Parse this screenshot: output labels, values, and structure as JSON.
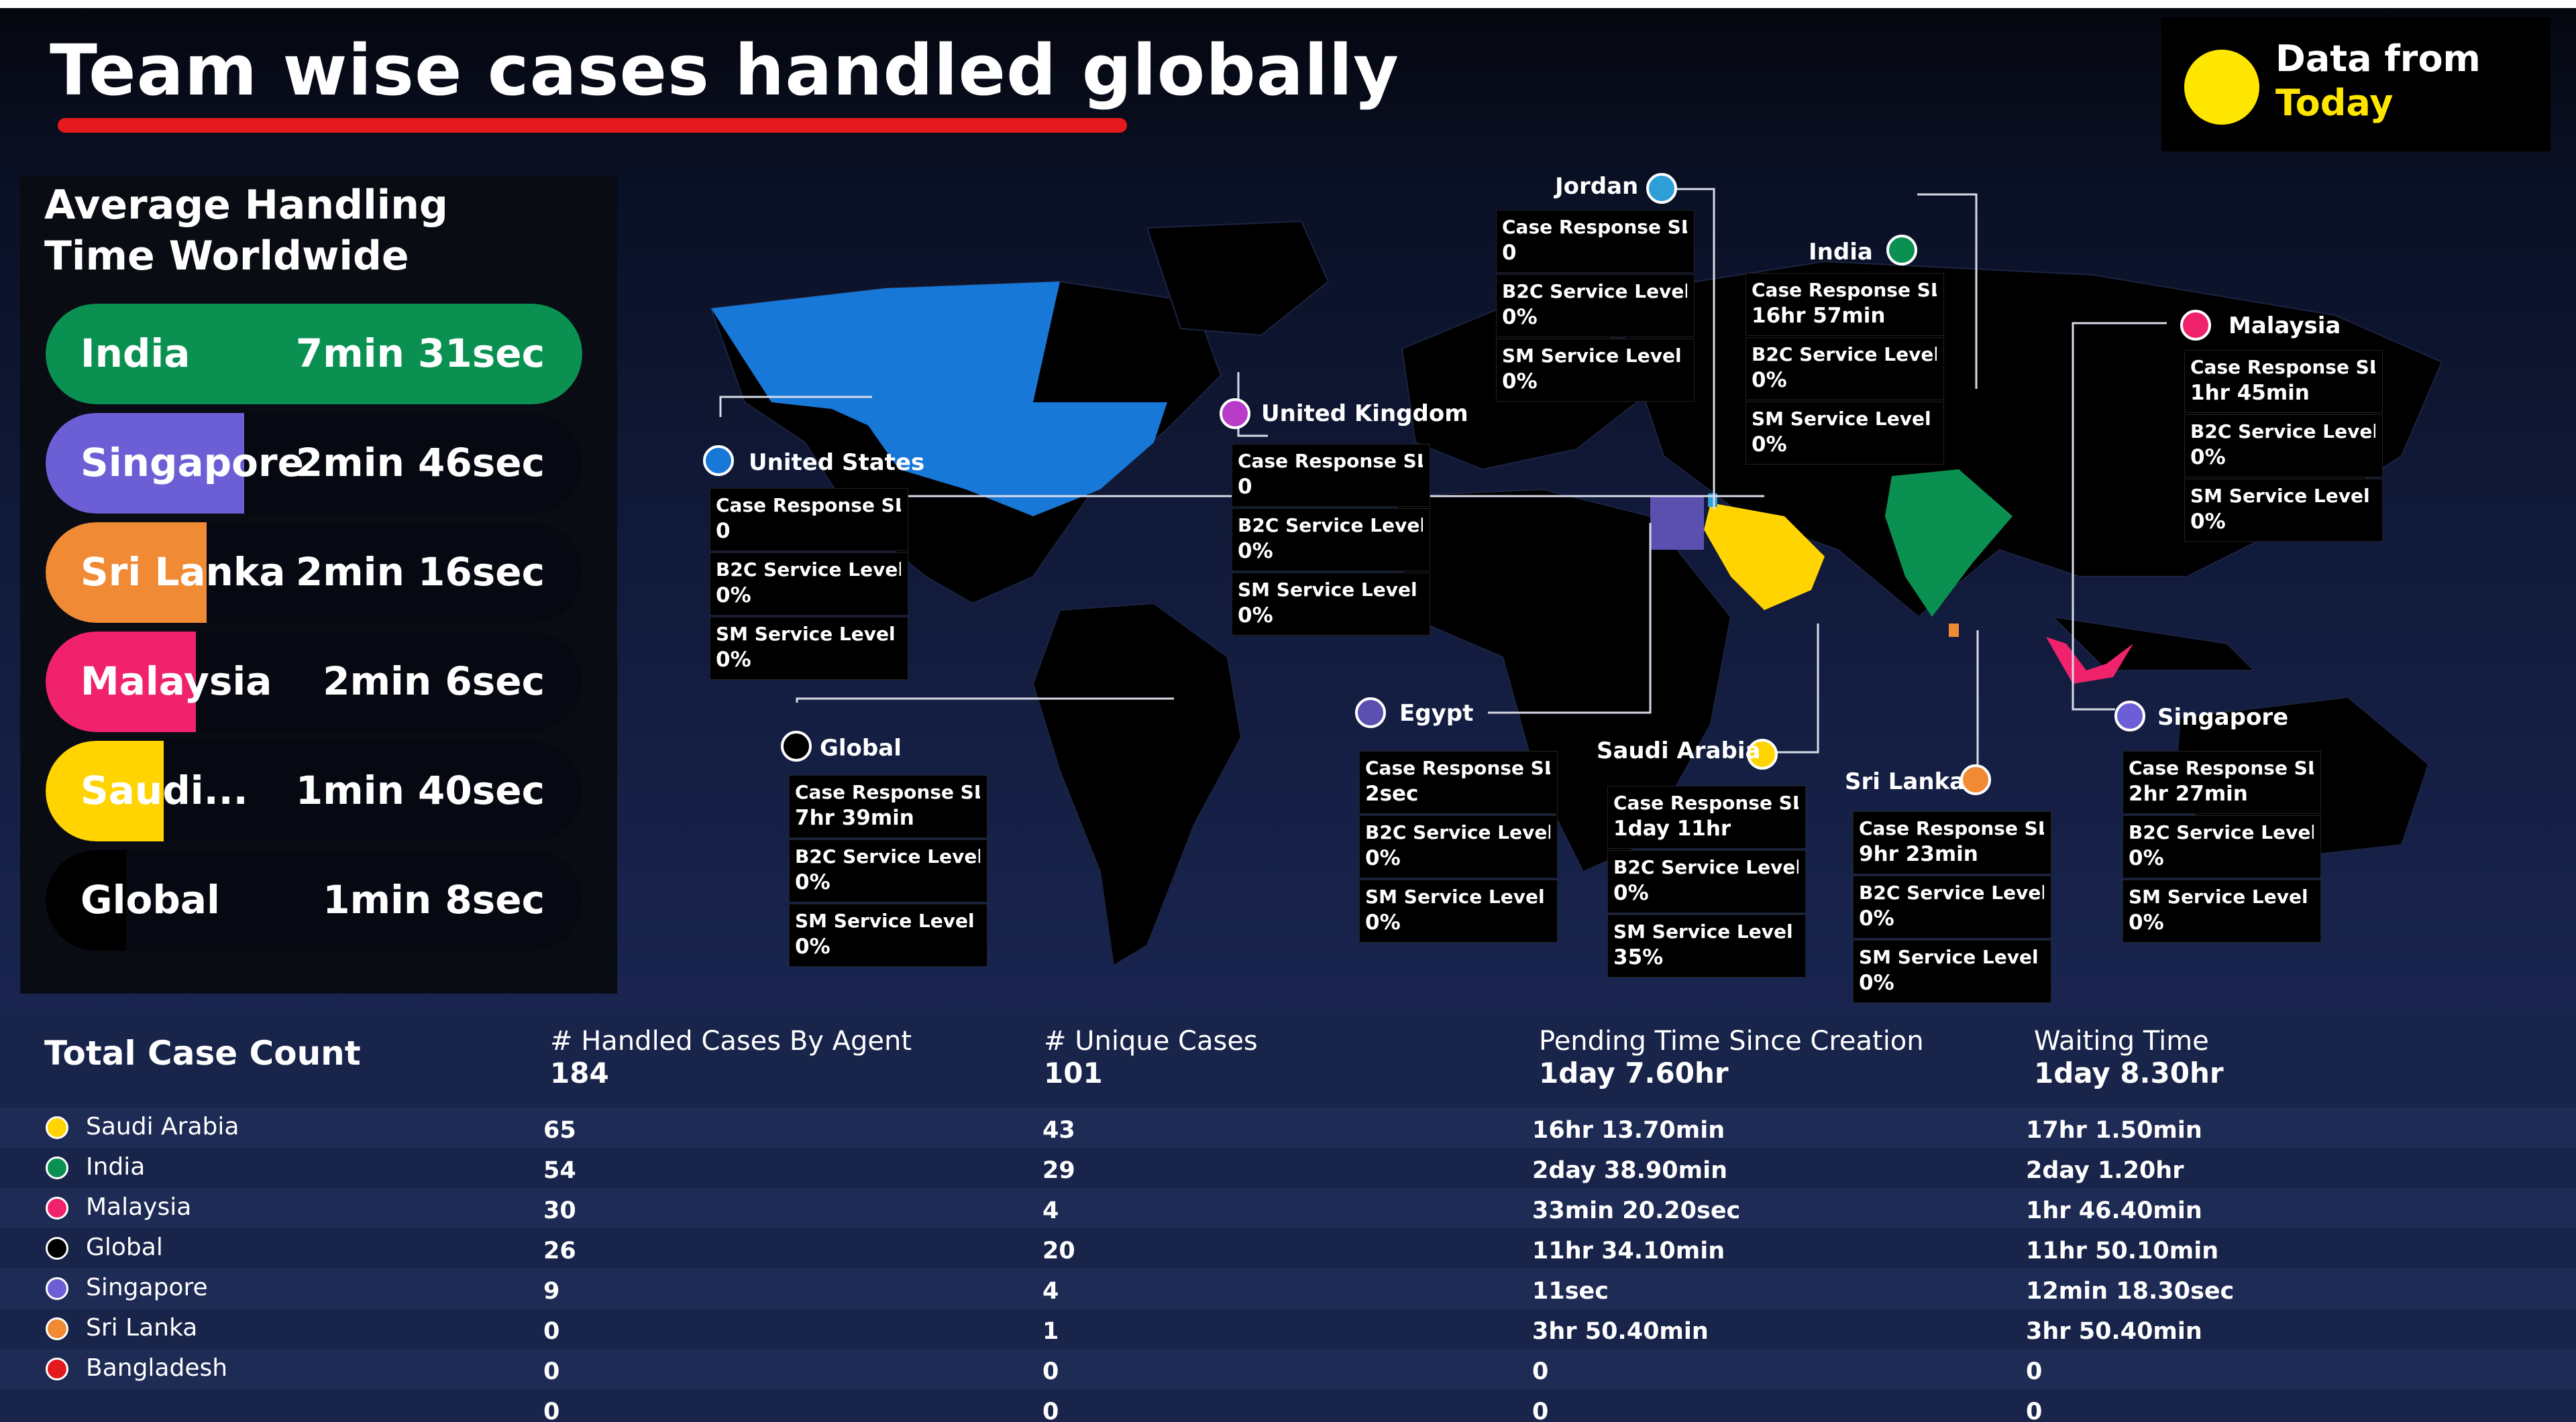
{
  "title": "Team wise cases handled globally",
  "data_source": {
    "line1": "Data from",
    "line2": "Today"
  },
  "aht": {
    "title": "Average Handling\nTime Worldwide",
    "rows": [
      {
        "name": "India",
        "value": "7min  31sec",
        "color": "#0a9152",
        "fill": 1.0
      },
      {
        "name": "Singapore",
        "value": "2min  46sec",
        "color": "#6c5fd6",
        "fill": 0.37
      },
      {
        "name": "Sri Lanka",
        "value": "2min  16sec",
        "color": "#f08a34",
        "fill": 0.3
      },
      {
        "name": "Malaysia",
        "value": "2min  6sec",
        "color": "#f0226c",
        "fill": 0.28
      },
      {
        "name": "Saudi...",
        "value": "1min  40sec",
        "color": "#ffd400",
        "fill": 0.22
      },
      {
        "name": "Global",
        "value": "1min  8sec",
        "color": "#000000",
        "fill": 0.15
      }
    ]
  },
  "regions": [
    {
      "name": "Jordan",
      "color": "#2f9fd8",
      "kpis": [
        {
          "label": "Case Response SLA",
          "value": "0"
        },
        {
          "label": "B2C Service Level",
          "value": "0%"
        },
        {
          "label": "SM Service Level",
          "value": "0%"
        }
      ]
    },
    {
      "name": "India",
      "color": "#0a9152",
      "kpis": [
        {
          "label": "Case Response SLA",
          "value": "16hr  57min"
        },
        {
          "label": "B2C Service Level",
          "value": "0%"
        },
        {
          "label": "SM Service Level",
          "value": "0%"
        }
      ]
    },
    {
      "name": "Malaysia",
      "color": "#f0226c",
      "kpis": [
        {
          "label": "Case Response SLA",
          "value": "1hr  45min"
        },
        {
          "label": "B2C Service Level",
          "value": "0%"
        },
        {
          "label": "SM Service Level",
          "value": "0%"
        }
      ]
    },
    {
      "name": "United Kingdom",
      "color": "#b93bc9",
      "kpis": [
        {
          "label": "Case Response SLA",
          "value": "0"
        },
        {
          "label": "B2C Service Level",
          "value": "0%"
        },
        {
          "label": "SM Service Level",
          "value": "0%"
        }
      ]
    },
    {
      "name": "United States",
      "color": "#1878d8",
      "kpis": [
        {
          "label": "Case Response SLA",
          "value": "0"
        },
        {
          "label": "B2C Service Level",
          "value": "0%"
        },
        {
          "label": "SM Service Level",
          "value": "0%"
        }
      ]
    },
    {
      "name": "Global",
      "color": "#000000",
      "kpis": [
        {
          "label": "Case Response SLA",
          "value": "7hr  39min"
        },
        {
          "label": "B2C Service Level",
          "value": "0%"
        },
        {
          "label": "SM Service Level",
          "value": "0%"
        }
      ]
    },
    {
      "name": "Egypt",
      "color": "#5b4fb0",
      "kpis": [
        {
          "label": "Case Response SLA",
          "value": "2sec"
        },
        {
          "label": "B2C Service Level",
          "value": "0%"
        },
        {
          "label": "SM Service Level",
          "value": "0%"
        }
      ]
    },
    {
      "name": "Saudi Arabia",
      "color": "#ffd400",
      "kpis": [
        {
          "label": "Case Response SLA",
          "value": "1day  11hr"
        },
        {
          "label": "B2C Service Level",
          "value": "0%"
        },
        {
          "label": "SM Service Level",
          "value": "35%"
        }
      ]
    },
    {
      "name": "Sri Lanka",
      "color": "#f08a34",
      "kpis": [
        {
          "label": "Case Response SLA",
          "value": "9hr  23min"
        },
        {
          "label": "B2C Service Level",
          "value": "0%"
        },
        {
          "label": "SM Service Level",
          "value": "0%"
        }
      ]
    },
    {
      "name": "Singapore",
      "color": "#6c5fd6",
      "kpis": [
        {
          "label": "Case Response SLA",
          "value": "2hr  27min"
        },
        {
          "label": "B2C Service Level",
          "value": "0%"
        },
        {
          "label": "SM Service Level",
          "value": "0%"
        }
      ]
    }
  ],
  "totals": {
    "title": "Total Case Count",
    "headers": [
      {
        "label": "# Handled Cases By Agent",
        "total": "184"
      },
      {
        "label": "# Unique Cases",
        "total": "101"
      },
      {
        "label": "Pending Time Since Creation",
        "total": "1day  7.60hr"
      },
      {
        "label": "Waiting Time",
        "total": "1day  8.30hr"
      }
    ],
    "rows": [
      {
        "name": "Saudi Arabia",
        "color": "#ffd400",
        "handled": "65",
        "unique": "43",
        "pending": "16hr  13.70min",
        "waiting": "17hr  1.50min"
      },
      {
        "name": "India",
        "color": "#0a9152",
        "handled": "54",
        "unique": "29",
        "pending": "2day  38.90min",
        "waiting": "2day  1.20hr"
      },
      {
        "name": "Malaysia",
        "color": "#f0226c",
        "handled": "30",
        "unique": "4",
        "pending": "33min  20.20sec",
        "waiting": "1hr  46.40min"
      },
      {
        "name": "Global",
        "color": "#000000",
        "handled": "26",
        "unique": "20",
        "pending": "11hr  34.10min",
        "waiting": "11hr  50.10min"
      },
      {
        "name": "Singapore",
        "color": "#6c5fd6",
        "handled": "9",
        "unique": "4",
        "pending": "11sec",
        "waiting": "12min  18.30sec"
      },
      {
        "name": "Sri Lanka",
        "color": "#f08a34",
        "handled": "0",
        "unique": "1",
        "pending": "3hr  50.40min",
        "waiting": "3hr  50.40min"
      },
      {
        "name": "Bangladesh",
        "color": "#e3191d",
        "handled": "0",
        "unique": "0",
        "pending": "0",
        "waiting": "0"
      },
      {
        "name": "",
        "color": "",
        "handled": "0",
        "unique": "0",
        "pending": "0",
        "waiting": "0"
      }
    ]
  }
}
